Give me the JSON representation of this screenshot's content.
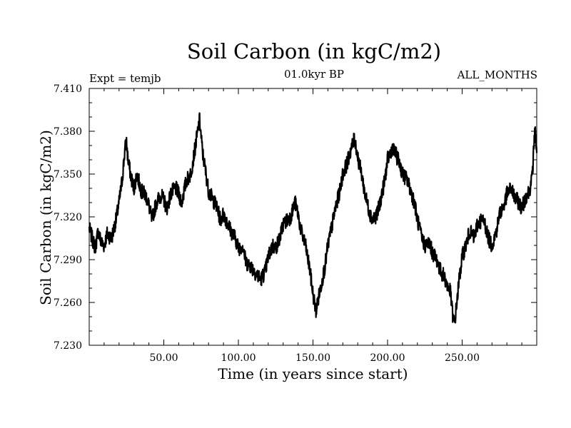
{
  "chart_data": {
    "type": "line",
    "title": "Soil Carbon (in kgC/m2)",
    "subtitle": "01.0kyr BP",
    "experiment_label": "Expt = temjb",
    "months_label": "ALL_MONTHS",
    "xlabel": "Time (in years since start)",
    "ylabel": "Soil Carbon (in kgC/m2)",
    "xlim": [
      0,
      300
    ],
    "ylim": [
      7.23,
      7.41
    ],
    "x_ticks": [
      50,
      100,
      150,
      200,
      250
    ],
    "x_tick_labels": [
      "50.00",
      "100.00",
      "150.00",
      "200.00",
      "250.00"
    ],
    "y_ticks": [
      7.23,
      7.26,
      7.29,
      7.32,
      7.35,
      7.38,
      7.41
    ],
    "y_tick_labels": [
      "7.230",
      "7.260",
      "7.290",
      "7.320",
      "7.350",
      "7.380",
      "7.410"
    ],
    "line_color": "#000000",
    "series": [
      {
        "name": "Soil Carbon",
        "x": [
          0,
          2,
          4,
          6,
          8,
          10,
          12,
          15,
          18,
          20,
          22,
          24,
          25,
          26,
          28,
          30,
          32,
          35,
          38,
          40,
          42,
          45,
          48,
          50,
          52,
          55,
          58,
          60,
          62,
          65,
          68,
          70,
          72,
          74,
          76,
          78,
          80,
          83,
          85,
          88,
          90,
          93,
          95,
          98,
          100,
          103,
          105,
          108,
          110,
          112,
          115,
          118,
          120,
          123,
          125,
          128,
          130,
          133,
          135,
          138,
          140,
          142,
          145,
          148,
          150,
          152,
          155,
          158,
          160,
          163,
          165,
          168,
          170,
          173,
          175,
          177,
          178,
          180,
          183,
          185,
          188,
          190,
          193,
          195,
          198,
          200,
          203,
          205,
          208,
          210,
          213,
          215,
          218,
          220,
          223,
          225,
          228,
          230,
          233,
          235,
          238,
          240,
          242,
          243,
          244,
          245,
          246,
          248,
          250,
          253,
          255,
          258,
          260,
          263,
          265,
          268,
          270,
          273,
          275,
          278,
          280,
          283,
          285,
          288,
          290,
          293,
          295,
          297,
          298,
          299,
          300
        ],
        "y": [
          7.312,
          7.305,
          7.298,
          7.31,
          7.302,
          7.3,
          7.308,
          7.305,
          7.318,
          7.33,
          7.345,
          7.368,
          7.372,
          7.36,
          7.348,
          7.34,
          7.35,
          7.338,
          7.335,
          7.328,
          7.318,
          7.33,
          7.335,
          7.332,
          7.326,
          7.337,
          7.34,
          7.336,
          7.33,
          7.345,
          7.35,
          7.362,
          7.375,
          7.388,
          7.365,
          7.352,
          7.338,
          7.332,
          7.328,
          7.318,
          7.322,
          7.315,
          7.31,
          7.305,
          7.298,
          7.3,
          7.288,
          7.286,
          7.283,
          7.28,
          7.276,
          7.282,
          7.292,
          7.3,
          7.298,
          7.306,
          7.315,
          7.318,
          7.32,
          7.33,
          7.322,
          7.31,
          7.3,
          7.282,
          7.266,
          7.254,
          7.27,
          7.285,
          7.3,
          7.315,
          7.326,
          7.338,
          7.35,
          7.358,
          7.366,
          7.372,
          7.375,
          7.362,
          7.348,
          7.335,
          7.323,
          7.318,
          7.322,
          7.33,
          7.345,
          7.36,
          7.368,
          7.365,
          7.358,
          7.35,
          7.346,
          7.34,
          7.33,
          7.318,
          7.305,
          7.3,
          7.302,
          7.295,
          7.29,
          7.283,
          7.278,
          7.272,
          7.268,
          7.258,
          7.248,
          7.245,
          7.256,
          7.276,
          7.292,
          7.302,
          7.31,
          7.305,
          7.314,
          7.318,
          7.316,
          7.304,
          7.3,
          7.31,
          7.322,
          7.328,
          7.336,
          7.34,
          7.334,
          7.33,
          7.326,
          7.335,
          7.338,
          7.348,
          7.368,
          7.384,
          7.362
        ]
      }
    ]
  }
}
